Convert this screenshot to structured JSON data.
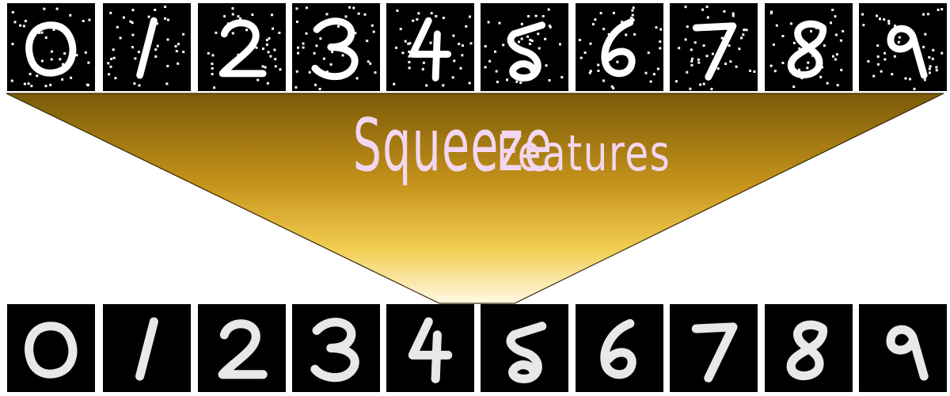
{
  "title": {
    "word1": "Squeeze",
    "word2": "Features"
  },
  "colors": {
    "funnel_top": "#7a5a08",
    "funnel_mid": "#d7a826",
    "funnel_bottom": "#fff6dc",
    "text": "#f3d6f1",
    "tile_bg": "#000000"
  },
  "rows": {
    "top": {
      "digits": [
        "0",
        "1",
        "2",
        "3",
        "4",
        "5",
        "6",
        "7",
        "8",
        "9"
      ],
      "noise": "high"
    },
    "bottom": {
      "digits": [
        "0",
        "1",
        "2",
        "3",
        "4",
        "5",
        "6",
        "7",
        "8",
        "9"
      ],
      "noise": "low"
    }
  }
}
